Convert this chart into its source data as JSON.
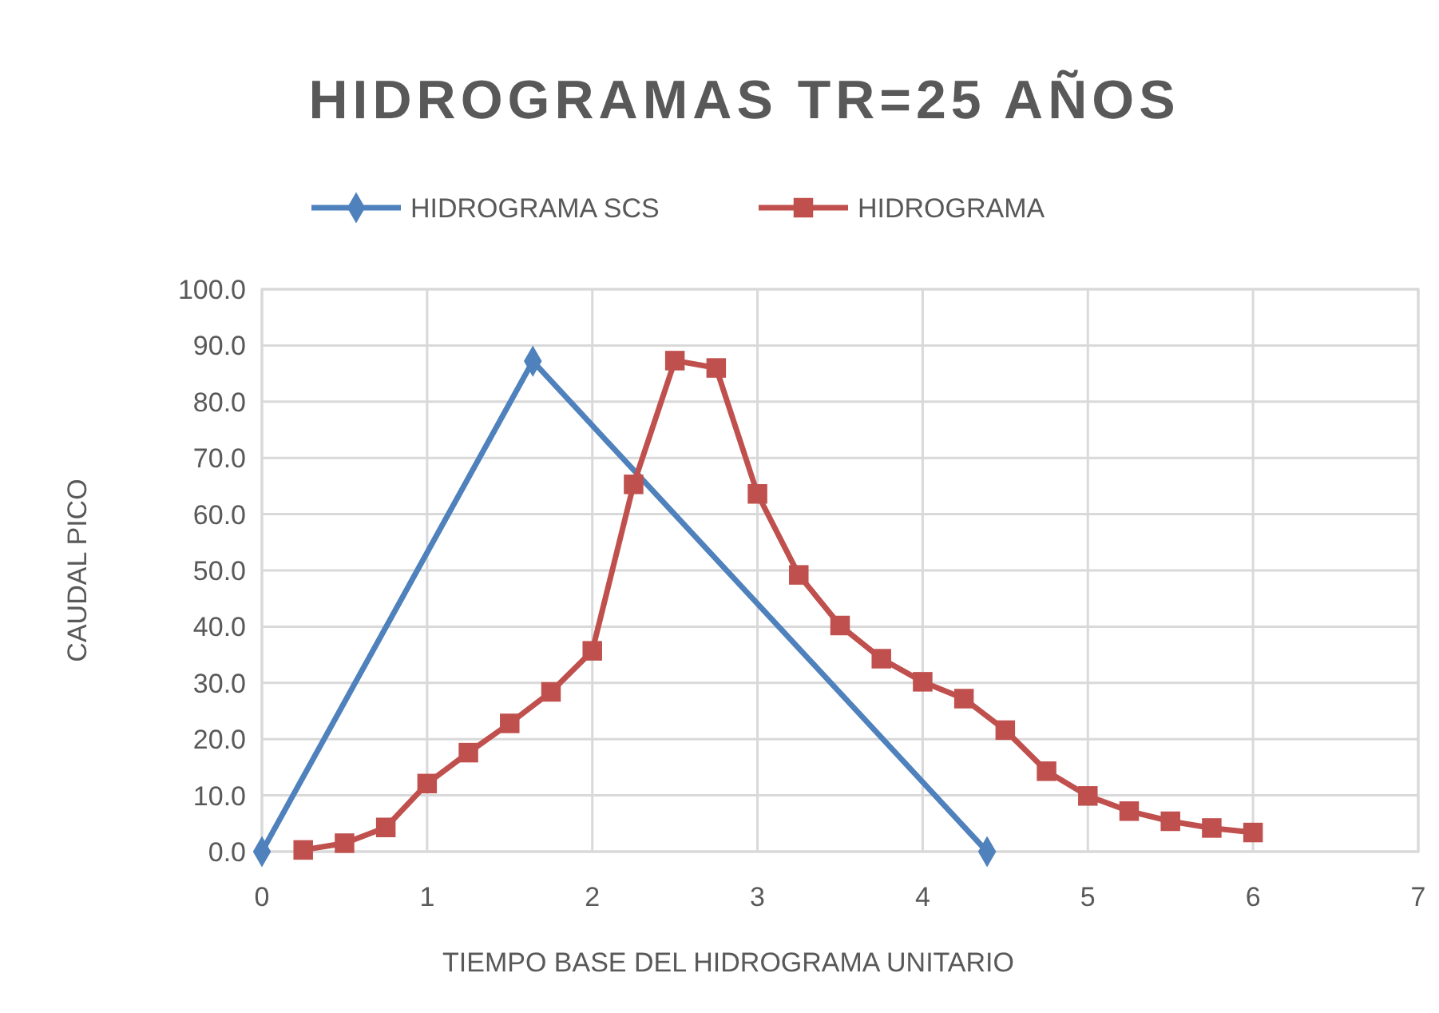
{
  "chart_data": {
    "type": "line",
    "title": "HIDROGRAMAS TR=25 AÑOS",
    "xlabel": "TIEMPO BASE DEL HIDROGRAMA UNITARIO",
    "ylabel": "CAUDAL PICO",
    "xlim": [
      0,
      7
    ],
    "xticks": [
      0,
      1,
      2,
      3,
      4,
      5,
      6,
      7
    ],
    "ylim": [
      0,
      100
    ],
    "yticks": [
      {
        "value": 0,
        "label": "0.0"
      },
      {
        "value": 10,
        "label": "10.0"
      },
      {
        "value": 20,
        "label": "20.0"
      },
      {
        "value": 30,
        "label": "30.0"
      },
      {
        "value": 40,
        "label": "40.0"
      },
      {
        "value": 50,
        "label": "50.0"
      },
      {
        "value": 60,
        "label": "60.0"
      },
      {
        "value": 70,
        "label": "70.0"
      },
      {
        "value": 80,
        "label": "80.0"
      },
      {
        "value": 90,
        "label": "90.0"
      },
      {
        "value": 100,
        "label": "100.0"
      }
    ],
    "grid": true,
    "legend": "top",
    "line_style": "solid",
    "series": [
      {
        "name": "HIDROGRAMA SCS",
        "color": "#4f81bd",
        "marker": "diamond",
        "x": [
          0,
          1.64,
          4.39
        ],
        "values": [
          0,
          87.2,
          0
        ]
      },
      {
        "name": "HIDROGRAMA",
        "color": "#c0504d",
        "marker": "square",
        "x": [
          0.25,
          0.5,
          0.75,
          1,
          1.25,
          1.5,
          1.75,
          2,
          2.25,
          2.5,
          2.75,
          3,
          3.25,
          3.5,
          3.75,
          4,
          4.25,
          4.5,
          4.75,
          5,
          5.25,
          5.5,
          5.75,
          6
        ],
        "values": [
          0.3,
          1.5,
          4.3,
          12.1,
          17.6,
          22.8,
          28.4,
          35.7,
          65.3,
          87.3,
          86.0,
          63.6,
          49.2,
          40.2,
          34.3,
          30.2,
          27.2,
          21.6,
          14.3,
          9.9,
          7.2,
          5.4,
          4.2,
          3.4
        ]
      }
    ]
  }
}
